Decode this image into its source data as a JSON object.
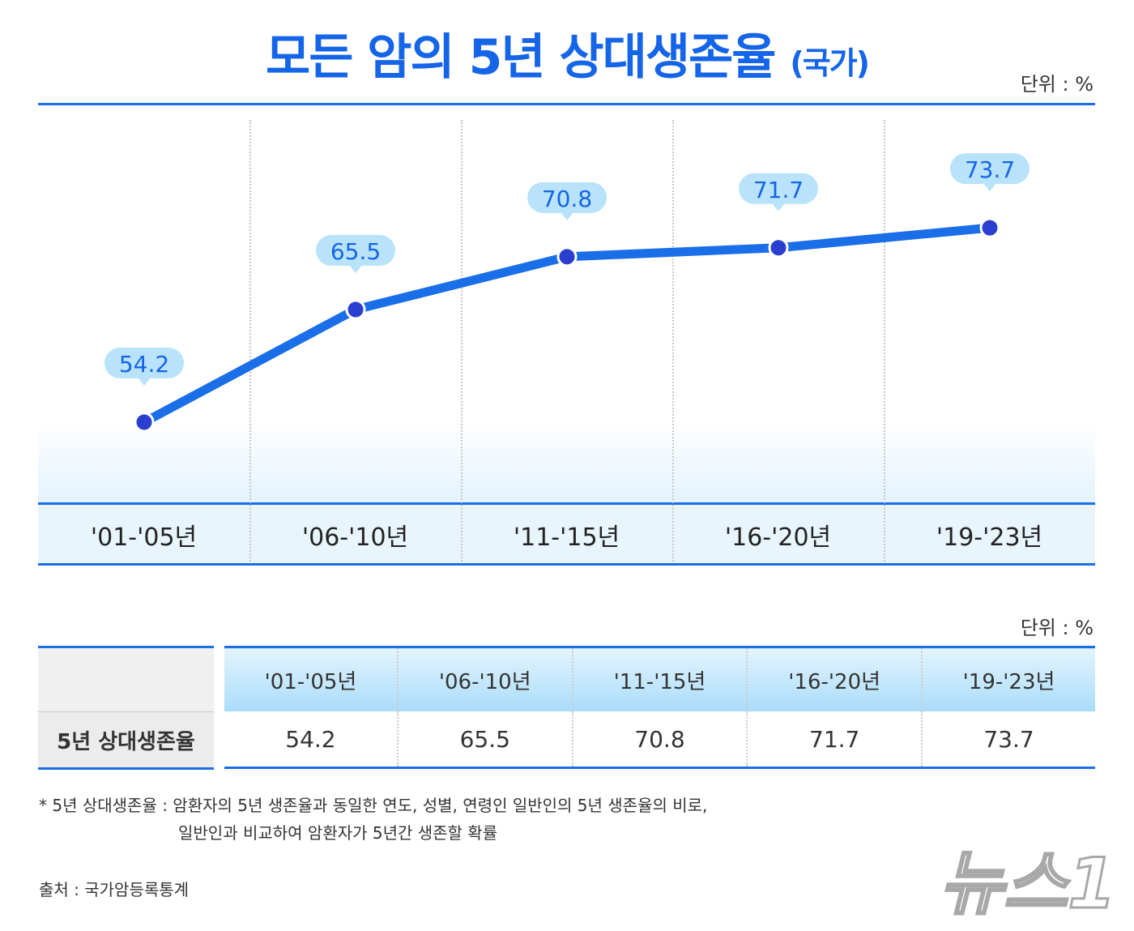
{
  "title": "모든 암의 5년 상대생존율",
  "title_sub": "(국가)",
  "unit": "단위 : %",
  "chart_data": {
    "type": "line",
    "title": "모든 암의 5년 상대생존율 (국가)",
    "categories": [
      "'01-'05년",
      "'06-'10년",
      "'11-'15년",
      "'16-'20년",
      "'19-'23년"
    ],
    "values": [
      54.2,
      65.5,
      70.8,
      71.7,
      73.7
    ],
    "data_labels": [
      "54.2",
      "65.5",
      "70.8",
      "71.7",
      "73.7"
    ],
    "unit": "%",
    "grid": "vertical dotted separators",
    "colors": {
      "line": "#1a6ee8",
      "marker": "#2a3fd0",
      "label_bg": "#b9e3fb",
      "label_text": "#1565e8"
    }
  },
  "table": {
    "unit": "단위 : %",
    "row_header": "5년 상대생존율",
    "columns": [
      "'01-'05년",
      "'06-'10년",
      "'11-'15년",
      "'16-'20년",
      "'19-'23년"
    ],
    "values": [
      "54.2",
      "65.5",
      "70.8",
      "71.7",
      "73.7"
    ]
  },
  "footnote": {
    "line1": "* 5년 상대생존율 : 암환자의 5년 생존율과 동일한 연도, 성별, 연령인 일반인의  5년 생존율의 비로,",
    "line2": "일반인과 비교하여 암환자가 5년간 생존할 확률"
  },
  "source": "출처 : 국가암등록통계",
  "watermark": "뉴스1"
}
